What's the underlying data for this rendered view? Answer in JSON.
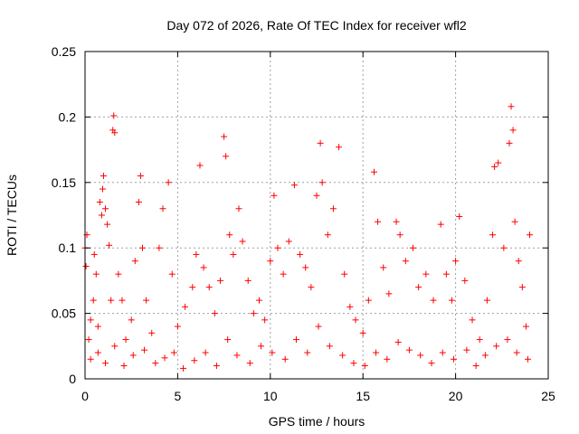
{
  "chart_data": {
    "type": "scatter",
    "title": "Day 072 of 2026, Rate Of TEC Index for receiver wfl2",
    "xlabel": "GPS time / hours",
    "ylabel": "ROTI / TECUs",
    "xlim": [
      0,
      25
    ],
    "ylim": [
      0,
      0.25
    ],
    "x_ticks": [
      0,
      5,
      10,
      15,
      20,
      25
    ],
    "x_tick_labels": [
      "0",
      "5",
      "10",
      "15",
      "20",
      "25"
    ],
    "y_ticks": [
      0,
      0.05,
      0.1,
      0.15,
      0.2,
      0.25
    ],
    "y_tick_labels": [
      "0",
      "0.05",
      "0.1",
      "0.15",
      "0.2",
      "0.25"
    ],
    "grid": true,
    "legend": "none",
    "marker": "plus",
    "marker_color": "#ff0000",
    "series": [
      {
        "points": [
          [
            0.0,
            0.1
          ],
          [
            0.05,
            0.086
          ],
          [
            0.1,
            0.11
          ],
          [
            0.2,
            0.03
          ],
          [
            0.3,
            0.045
          ],
          [
            0.45,
            0.06
          ],
          [
            0.5,
            0.095
          ],
          [
            0.6,
            0.08
          ],
          [
            0.7,
            0.04
          ],
          [
            0.8,
            0.135
          ],
          [
            0.9,
            0.125
          ],
          [
            0.95,
            0.145
          ],
          [
            1.0,
            0.155
          ],
          [
            1.1,
            0.13
          ],
          [
            1.2,
            0.118
          ],
          [
            1.3,
            0.102
          ],
          [
            1.4,
            0.06
          ],
          [
            1.5,
            0.19
          ],
          [
            1.55,
            0.201
          ],
          [
            1.6,
            0.188
          ],
          [
            1.8,
            0.08
          ],
          [
            2.0,
            0.06
          ],
          [
            2.2,
            0.03
          ],
          [
            2.5,
            0.045
          ],
          [
            2.7,
            0.09
          ],
          [
            2.9,
            0.135
          ],
          [
            3.0,
            0.155
          ],
          [
            3.1,
            0.1
          ],
          [
            3.3,
            0.06
          ],
          [
            3.6,
            0.035
          ],
          [
            4.0,
            0.1
          ],
          [
            4.2,
            0.13
          ],
          [
            4.5,
            0.15
          ],
          [
            4.7,
            0.08
          ],
          [
            5.0,
            0.04
          ],
          [
            5.4,
            0.055
          ],
          [
            5.8,
            0.07
          ],
          [
            6.0,
            0.095
          ],
          [
            6.2,
            0.163
          ],
          [
            6.4,
            0.085
          ],
          [
            6.7,
            0.07
          ],
          [
            7.0,
            0.05
          ],
          [
            7.3,
            0.075
          ],
          [
            7.5,
            0.185
          ],
          [
            7.6,
            0.17
          ],
          [
            7.8,
            0.11
          ],
          [
            8.0,
            0.095
          ],
          [
            8.3,
            0.13
          ],
          [
            8.5,
            0.105
          ],
          [
            8.8,
            0.075
          ],
          [
            9.1,
            0.05
          ],
          [
            9.4,
            0.06
          ],
          [
            9.7,
            0.045
          ],
          [
            10.0,
            0.09
          ],
          [
            10.2,
            0.14
          ],
          [
            10.4,
            0.1
          ],
          [
            10.7,
            0.08
          ],
          [
            11.0,
            0.105
          ],
          [
            11.3,
            0.148
          ],
          [
            11.6,
            0.095
          ],
          [
            11.9,
            0.085
          ],
          [
            12.2,
            0.07
          ],
          [
            12.5,
            0.14
          ],
          [
            12.7,
            0.18
          ],
          [
            12.8,
            0.15
          ],
          [
            13.1,
            0.11
          ],
          [
            13.4,
            0.13
          ],
          [
            13.7,
            0.177
          ],
          [
            14.0,
            0.08
          ],
          [
            14.3,
            0.055
          ],
          [
            14.6,
            0.045
          ],
          [
            15.0,
            0.035
          ],
          [
            15.3,
            0.06
          ],
          [
            15.6,
            0.158
          ],
          [
            15.8,
            0.12
          ],
          [
            16.1,
            0.085
          ],
          [
            16.4,
            0.065
          ],
          [
            16.8,
            0.12
          ],
          [
            17.0,
            0.11
          ],
          [
            17.3,
            0.09
          ],
          [
            17.7,
            0.1
          ],
          [
            18.0,
            0.07
          ],
          [
            18.4,
            0.08
          ],
          [
            18.8,
            0.06
          ],
          [
            19.2,
            0.118
          ],
          [
            19.5,
            0.08
          ],
          [
            19.8,
            0.06
          ],
          [
            20.0,
            0.09
          ],
          [
            20.2,
            0.124
          ],
          [
            20.5,
            0.075
          ],
          [
            20.9,
            0.045
          ],
          [
            21.3,
            0.03
          ],
          [
            21.7,
            0.06
          ],
          [
            22.0,
            0.11
          ],
          [
            22.1,
            0.162
          ],
          [
            22.3,
            0.165
          ],
          [
            22.6,
            0.1
          ],
          [
            22.9,
            0.18
          ],
          [
            23.0,
            0.208
          ],
          [
            23.1,
            0.19
          ],
          [
            23.2,
            0.12
          ],
          [
            23.4,
            0.09
          ],
          [
            23.6,
            0.07
          ],
          [
            23.8,
            0.04
          ],
          [
            24.0,
            0.11
          ],
          [
            0.3,
            0.015
          ],
          [
            0.7,
            0.02
          ],
          [
            1.1,
            0.012
          ],
          [
            1.6,
            0.025
          ],
          [
            2.1,
            0.01
          ],
          [
            2.6,
            0.018
          ],
          [
            3.2,
            0.022
          ],
          [
            3.8,
            0.012
          ],
          [
            4.3,
            0.016
          ],
          [
            4.8,
            0.02
          ],
          [
            5.3,
            0.008
          ],
          [
            5.9,
            0.014
          ],
          [
            6.5,
            0.02
          ],
          [
            7.1,
            0.01
          ],
          [
            7.7,
            0.03
          ],
          [
            8.2,
            0.018
          ],
          [
            8.9,
            0.012
          ],
          [
            9.5,
            0.025
          ],
          [
            10.1,
            0.02
          ],
          [
            10.8,
            0.015
          ],
          [
            11.4,
            0.03
          ],
          [
            12.0,
            0.02
          ],
          [
            12.6,
            0.04
          ],
          [
            13.2,
            0.025
          ],
          [
            13.9,
            0.018
          ],
          [
            14.5,
            0.012
          ],
          [
            15.1,
            0.01
          ],
          [
            15.7,
            0.02
          ],
          [
            16.3,
            0.015
          ],
          [
            16.9,
            0.028
          ],
          [
            17.5,
            0.022
          ],
          [
            18.1,
            0.018
          ],
          [
            18.7,
            0.012
          ],
          [
            19.3,
            0.02
          ],
          [
            19.9,
            0.015
          ],
          [
            20.6,
            0.022
          ],
          [
            21.1,
            0.01
          ],
          [
            21.6,
            0.018
          ],
          [
            22.2,
            0.025
          ],
          [
            22.8,
            0.03
          ],
          [
            23.3,
            0.02
          ],
          [
            23.9,
            0.015
          ]
        ]
      }
    ]
  }
}
